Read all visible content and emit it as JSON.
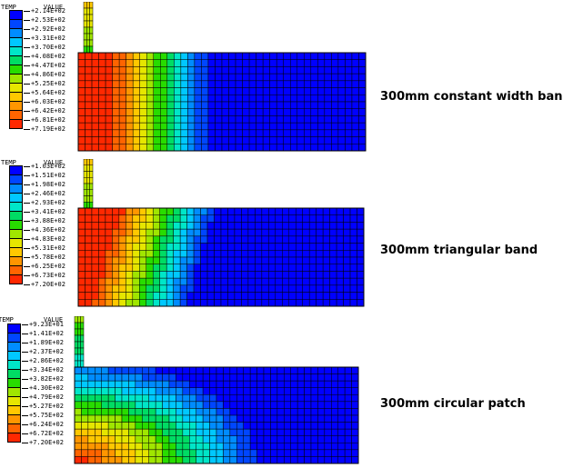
{
  "legend_header": {
    "temp": "TEMP",
    "value": "VALUE"
  },
  "colors": [
    "#0000ff",
    "#0046ff",
    "#008cff",
    "#00c8ff",
    "#00e6c8",
    "#00dc64",
    "#28dc00",
    "#a0e600",
    "#e6e600",
    "#ffc800",
    "#ff9600",
    "#ff6400",
    "#ff2800"
  ],
  "panels": [
    {
      "label": "300mm constant width band",
      "legend_values": [
        "+2.14E+02",
        "+2.53E+02",
        "+2.92E+02",
        "+3.31E+02",
        "+3.70E+02",
        "+4.08E+02",
        "+4.47E+02",
        "+4.86E+02",
        "+5.25E+02",
        "+5.64E+02",
        "+6.03E+02",
        "+6.42E+02",
        "+6.81E+02",
        "+7.19E+02"
      ],
      "pattern": "band"
    },
    {
      "label": "300mm triangular band",
      "legend_values": [
        "+1.03E+02",
        "+1.51E+02",
        "+1.98E+02",
        "+2.46E+02",
        "+2.93E+02",
        "+3.41E+02",
        "+3.88E+02",
        "+4.36E+02",
        "+4.83E+02",
        "+5.31E+02",
        "+5.78E+02",
        "+6.25E+02",
        "+6.73E+02",
        "+7.20E+02"
      ],
      "pattern": "triangular"
    },
    {
      "label": "300mm circular patch",
      "legend_values": [
        "+9.23E+01",
        "+1.41E+02",
        "+1.89E+02",
        "+2.37E+02",
        "+2.86E+02",
        "+3.34E+02",
        "+3.82E+02",
        "+4.30E+02",
        "+4.79E+02",
        "+5.27E+02",
        "+5.75E+02",
        "+6.24E+02",
        "+6.72E+02",
        "+7.20E+02"
      ],
      "pattern": "circular"
    }
  ]
}
